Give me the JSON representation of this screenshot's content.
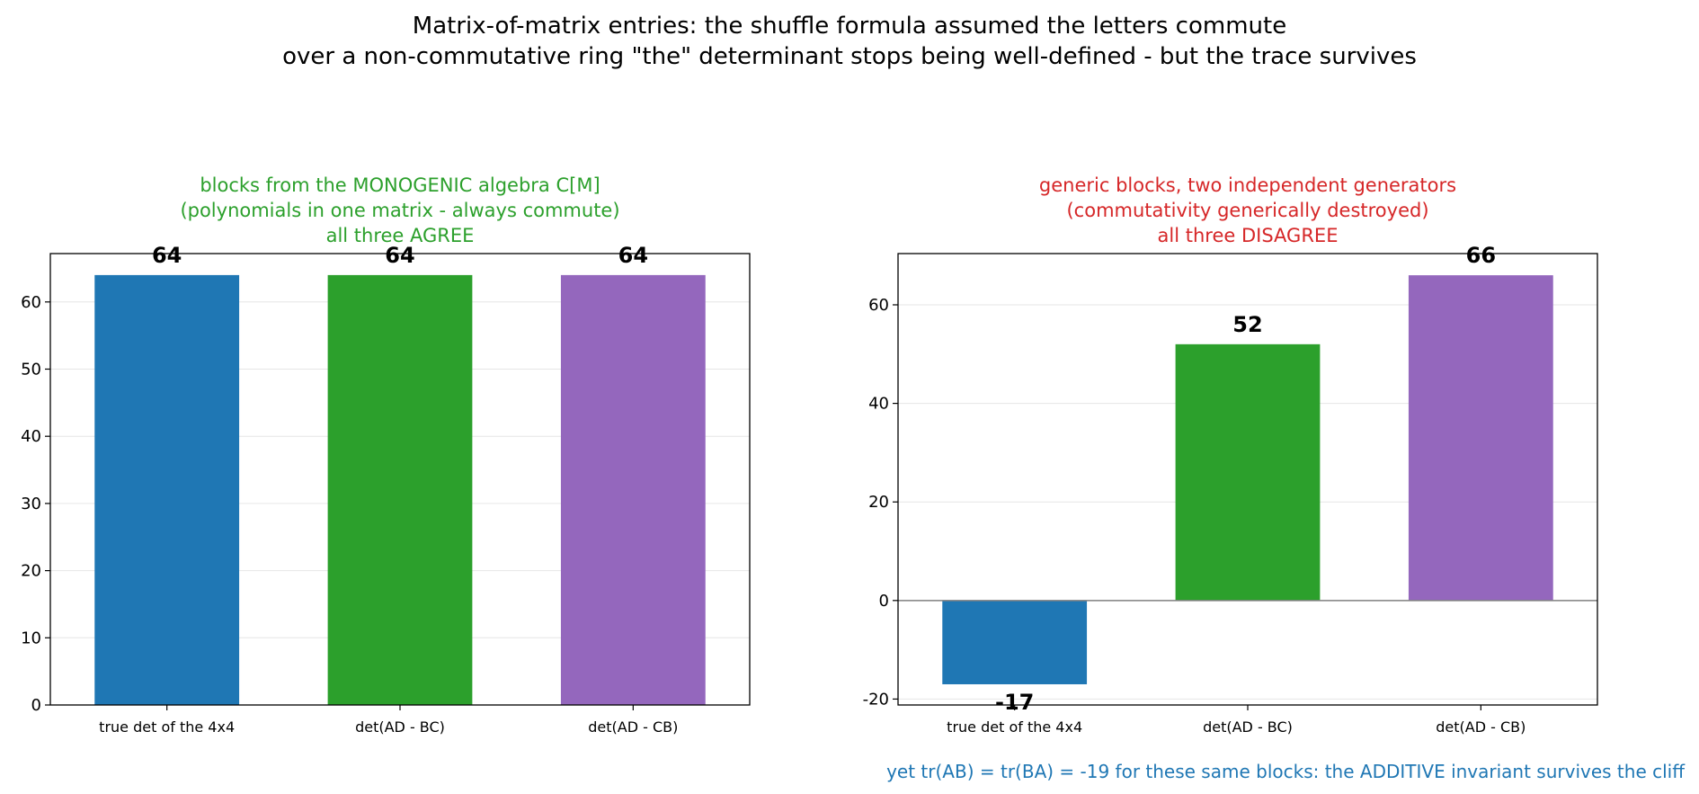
{
  "suptitle": {
    "line1": "Matrix-of-matrix entries: the shuffle formula assumed the letters commute",
    "line2": "over a non-commutative ring \"the\" determinant stops being well-defined - but the trace survives"
  },
  "footnote": "yet tr(AB) = tr(BA) = -19 for these same blocks: the ADDITIVE invariant survives the cliff",
  "colors": {
    "blue": "#1f77b4",
    "green": "#2ca02c",
    "purple": "#9467bd",
    "red": "#d62728",
    "title_green": "#2ca02c",
    "title_red": "#d62728"
  },
  "chart_data": [
    {
      "type": "bar",
      "title_lines": [
        "blocks from the MONOGENIC algebra C[M]",
        "(polynomials in one matrix - always commute)",
        "all three AGREE"
      ],
      "title_color": "#2ca02c",
      "categories": [
        "true det of the 4x4",
        "det(AD - BC)",
        "det(AD - CB)"
      ],
      "values": [
        64,
        64,
        64
      ],
      "value_labels": [
        "64",
        "64",
        "64"
      ],
      "bar_colors": [
        "#1f77b4",
        "#2ca02c",
        "#9467bd"
      ],
      "ylim": [
        0,
        67.2
      ],
      "yticks": [
        0,
        10,
        20,
        30,
        40,
        50,
        60
      ],
      "grid": true,
      "xlabel": "",
      "ylabel": ""
    },
    {
      "type": "bar",
      "title_lines": [
        "generic blocks, two independent generators",
        "(commutativity generically destroyed)",
        "all three DISAGREE"
      ],
      "title_color": "#d62728",
      "categories": [
        "true det of the 4x4",
        "det(AD - BC)",
        "det(AD - CB)"
      ],
      "values": [
        -17,
        52,
        66
      ],
      "value_labels": [
        "-17",
        "52",
        "66"
      ],
      "bar_colors": [
        "#1f77b4",
        "#2ca02c",
        "#9467bd"
      ],
      "ylim": [
        -21.2,
        70.4
      ],
      "yticks": [
        -20,
        0,
        20,
        40,
        60
      ],
      "grid": true,
      "zero_line": true,
      "xlabel": "",
      "ylabel": ""
    }
  ]
}
